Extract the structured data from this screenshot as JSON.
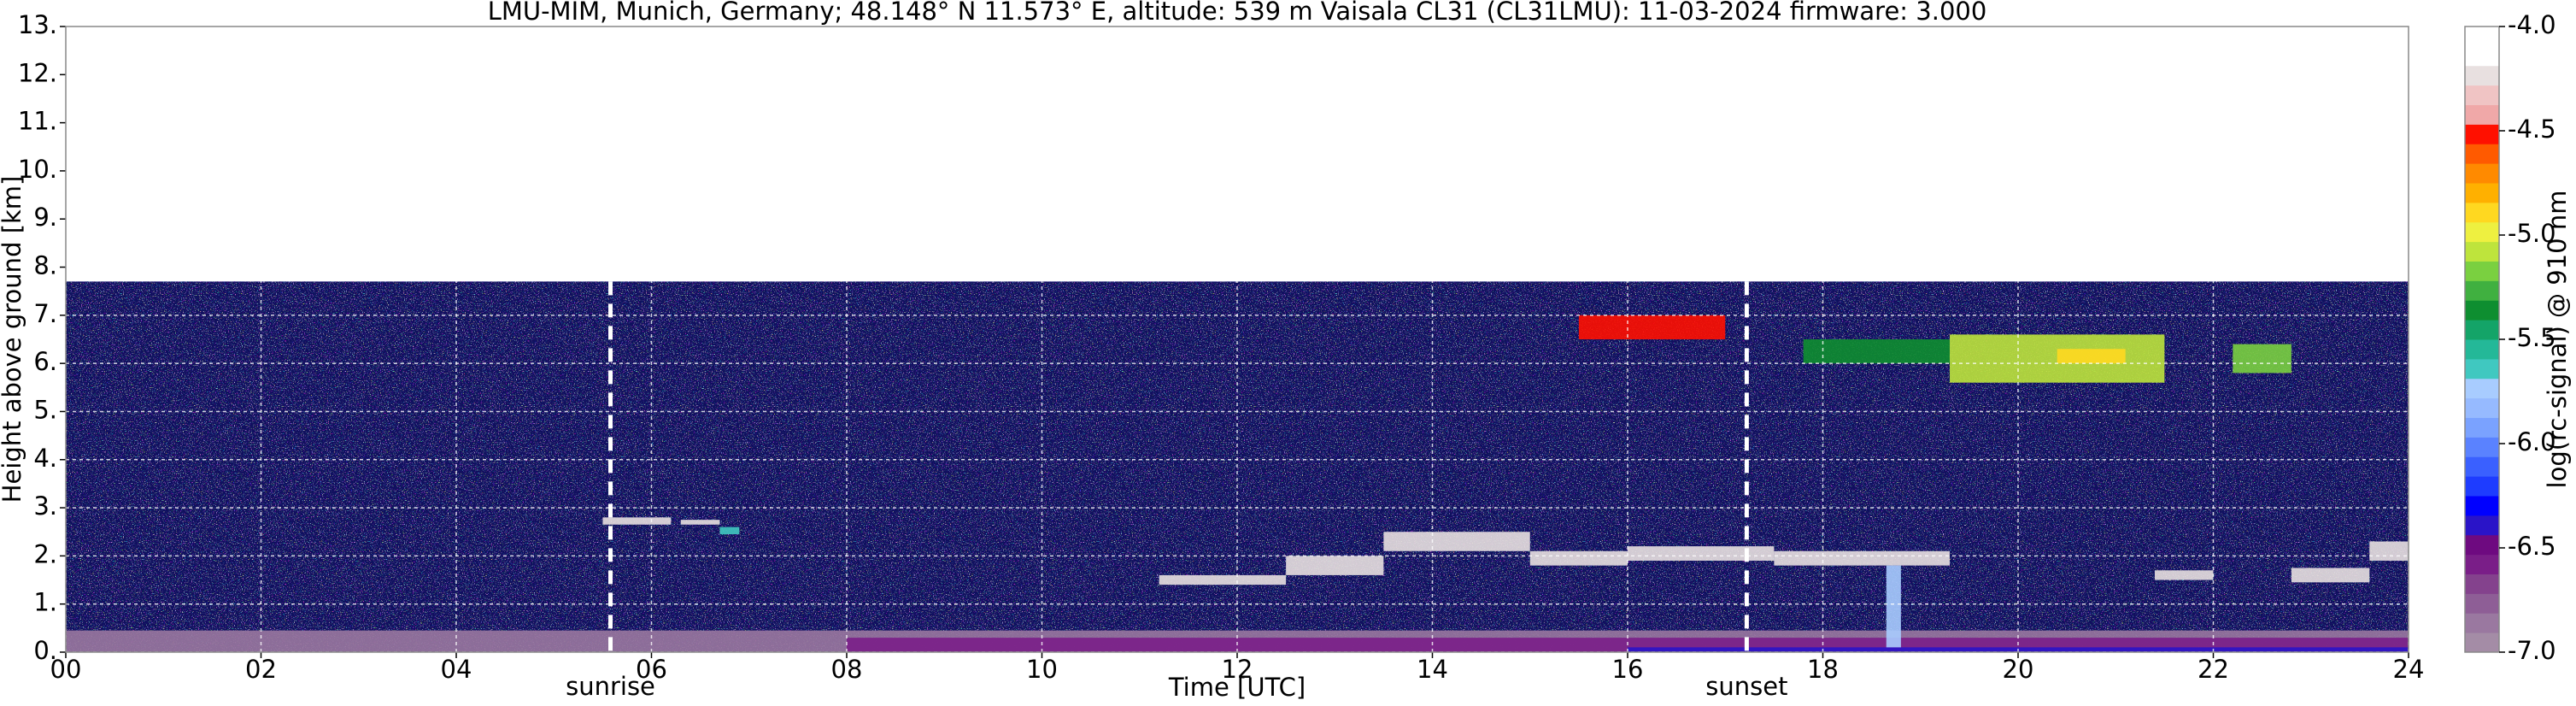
{
  "chart_data": {
    "type": "heatmap",
    "title": "LMU-MIM, Munich, Germany; 48.148° N 11.573° E, altitude: 539 m    Vaisala CL31 (CL31LMU): 11-03-2024    firmware: 3.000",
    "xlabel": "Time [UTC]",
    "ylabel": "Height above ground [km]",
    "colorbar_label": "log(rc-signal) @ 910 nm",
    "xlim": [
      0,
      24
    ],
    "xticks": [
      {
        "value": 0,
        "label": "00"
      },
      {
        "value": 2,
        "label": "02"
      },
      {
        "value": 4,
        "label": "04"
      },
      {
        "value": 6,
        "label": "06"
      },
      {
        "value": 8,
        "label": "08"
      },
      {
        "value": 10,
        "label": "10"
      },
      {
        "value": 12,
        "label": "12"
      },
      {
        "value": 14,
        "label": "14"
      },
      {
        "value": 16,
        "label": "16"
      },
      {
        "value": 18,
        "label": "18"
      },
      {
        "value": 20,
        "label": "20"
      },
      {
        "value": 22,
        "label": "22"
      },
      {
        "value": 24,
        "label": "24"
      }
    ],
    "ylim": [
      0,
      13
    ],
    "yticks": [
      {
        "value": 0,
        "label": "0."
      },
      {
        "value": 1,
        "label": "1."
      },
      {
        "value": 2,
        "label": "2."
      },
      {
        "value": 3,
        "label": "3."
      },
      {
        "value": 4,
        "label": "4."
      },
      {
        "value": 5,
        "label": "5."
      },
      {
        "value": 6,
        "label": "6."
      },
      {
        "value": 7,
        "label": "7."
      },
      {
        "value": 8,
        "label": "8."
      },
      {
        "value": 9,
        "label": "9."
      },
      {
        "value": 10,
        "label": "10."
      },
      {
        "value": 11,
        "label": "11."
      },
      {
        "value": 12,
        "label": "12."
      },
      {
        "value": 13,
        "label": "13."
      }
    ],
    "grid": true,
    "clim": [
      -7,
      -4
    ],
    "cticks": [
      {
        "value": -7,
        "label": "-7.0"
      },
      -6.5,
      {
        "value": -6,
        "label": "-6.0"
      },
      -5.5,
      {
        "value": -5,
        "label": "-5.0"
      },
      -4.5,
      {
        "value": -4,
        "label": "-4.0"
      }
    ],
    "colormap": [
      "#a48ca6",
      "#9a78a0",
      "#8e5e96",
      "#84428d",
      "#7a1e88",
      "#6e0a80",
      "#2a14c8",
      "#0000ff",
      "#1e3cff",
      "#3a60ff",
      "#5a82ff",
      "#7aa2ff",
      "#96baff",
      "#a8ccff",
      "#40c8c0",
      "#24b898",
      "#14a468",
      "#0e8e30",
      "#40b040",
      "#7ad040",
      "#bee43c",
      "#eef040",
      "#ffd820",
      "#ffb000",
      "#ff8a00",
      "#ff5a00",
      "#ff1000",
      "#f0a8a8",
      "#f0c4c4",
      "#e8e0e0",
      "#ffffff",
      "#ffffff"
    ],
    "annotations": [
      {
        "text": "sunrise",
        "x": 5.58
      },
      {
        "text": "sunset",
        "x": 17.22
      }
    ],
    "features": [
      {
        "x": [
          0,
          24
        ],
        "y": [
          0,
          7.7
        ],
        "value": -6.3
      },
      {
        "x": [
          0,
          24
        ],
        "y": [
          0,
          0.45
        ],
        "value": -6.85
      },
      {
        "x": [
          8,
          24
        ],
        "y": [
          0,
          0.3
        ],
        "value": -6.6
      },
      {
        "x": [
          16,
          24
        ],
        "y": [
          0,
          0.1
        ],
        "value": -6.4
      },
      {
        "x": [
          5.5,
          6.2
        ],
        "y": [
          2.65,
          2.8
        ],
        "value": -4.2
      },
      {
        "x": [
          6.3,
          6.7
        ],
        "y": [
          2.65,
          2.75
        ],
        "value": -4.2
      },
      {
        "x": [
          6.7,
          6.9
        ],
        "y": [
          2.45,
          2.6
        ],
        "value": -5.6
      },
      {
        "x": [
          11.2,
          12.5
        ],
        "y": [
          1.4,
          1.6
        ],
        "value": -4.2
      },
      {
        "x": [
          12.5,
          13.5
        ],
        "y": [
          1.6,
          2.0
        ],
        "value": -4.2
      },
      {
        "x": [
          13.5,
          15.0
        ],
        "y": [
          2.1,
          2.5
        ],
        "value": -4.2
      },
      {
        "x": [
          15.0,
          16.0
        ],
        "y": [
          1.8,
          2.1
        ],
        "value": -4.2
      },
      {
        "x": [
          16.0,
          17.5
        ],
        "y": [
          1.9,
          2.2
        ],
        "value": -4.2
      },
      {
        "x": [
          17.5,
          19.3
        ],
        "y": [
          1.8,
          2.1
        ],
        "value": -4.2
      },
      {
        "x": [
          18.65,
          18.8
        ],
        "y": [
          0.1,
          1.8
        ],
        "value": -5.7
      },
      {
        "x": [
          21.4,
          22.0
        ],
        "y": [
          1.5,
          1.7
        ],
        "value": -4.2
      },
      {
        "x": [
          22.8,
          23.6
        ],
        "y": [
          1.45,
          1.75
        ],
        "value": -4.2
      },
      {
        "x": [
          23.6,
          24.0
        ],
        "y": [
          1.9,
          2.3
        ],
        "value": -4.2
      },
      {
        "x": [
          15.5,
          17.0
        ],
        "y": [
          6.5,
          7.0
        ],
        "value": -4.5
      },
      {
        "x": [
          17.8,
          19.3
        ],
        "y": [
          6.0,
          6.5
        ],
        "value": -5.4
      },
      {
        "x": [
          19.3,
          21.5
        ],
        "y": [
          5.6,
          6.6
        ],
        "value": -5.05
      },
      {
        "x": [
          20.4,
          21.1
        ],
        "y": [
          6.0,
          6.3
        ],
        "value": -4.85
      },
      {
        "x": [
          22.2,
          22.8
        ],
        "y": [
          5.8,
          6.4
        ],
        "value": -5.2
      }
    ]
  }
}
